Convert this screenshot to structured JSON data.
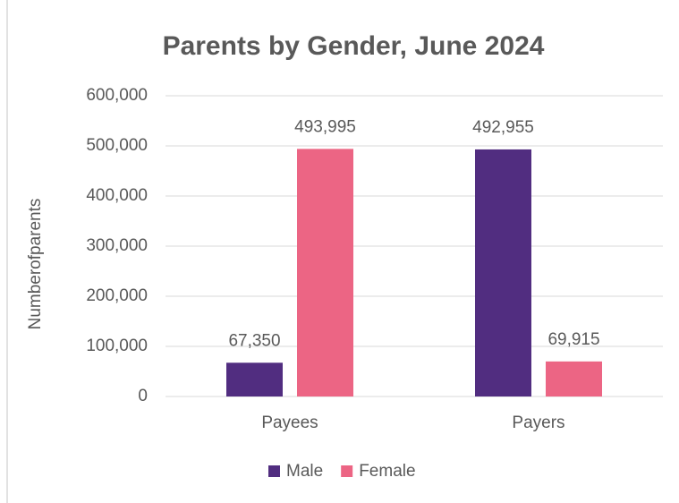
{
  "chart_data": {
    "type": "bar",
    "title": "Parents by Gender, June 2024",
    "y_label": "Numberofparents",
    "categories": [
      "Payees",
      "Payers"
    ],
    "series": [
      {
        "name": "Male",
        "color": "#512d80",
        "values": [
          67350,
          492955
        ],
        "value_labels": [
          "67,350",
          "492,955"
        ]
      },
      {
        "name": "Female",
        "color": "#ec6584",
        "values": [
          493995,
          69915
        ],
        "value_labels": [
          "493,995",
          "69,915"
        ]
      }
    ],
    "ylim": [
      0,
      600000
    ],
    "yticks": [
      0,
      {
        "value": 100000,
        "label": "100,000"
      },
      {
        "value": 200000,
        "label": "200,000"
      },
      {
        "value": 300000,
        "label": "300,000"
      },
      {
        "value": 400000,
        "label": "400,000"
      },
      {
        "value": 500000,
        "label": "500,000"
      },
      {
        "value": 600000,
        "label": "600,000"
      }
    ],
    "grid": true,
    "legend": "bottom"
  }
}
